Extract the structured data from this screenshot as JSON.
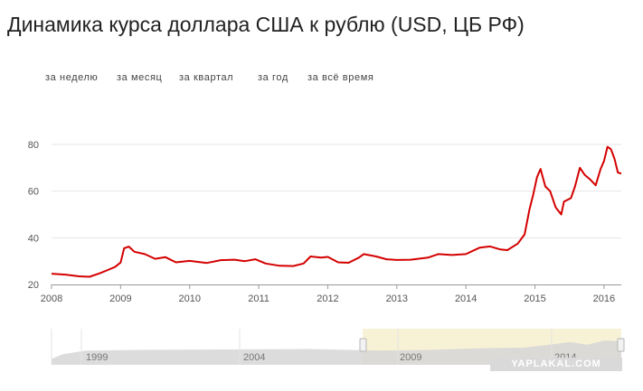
{
  "page": {
    "title": "Динамика курса доллара США к рублю (USD, ЦБ РФ)"
  },
  "range_tabs": [
    {
      "label": "за неделю"
    },
    {
      "label": "за месяц"
    },
    {
      "label": "за квартал"
    },
    {
      "label": "за год"
    },
    {
      "label": "за всё время"
    }
  ],
  "watermark": "YAPLAKAL.COM",
  "colors": {
    "series_line": "#d40000",
    "navigator_window": "#f7f2d6",
    "navigator_area": "#d6d6d6",
    "grid": "#e6e6e6"
  },
  "chart_data": {
    "type": "line",
    "title": "",
    "xlabel": "",
    "ylabel": "",
    "grid": true,
    "legend": "none",
    "xlim": [
      2008.0,
      2016.25
    ],
    "ylim": [
      20,
      80
    ],
    "x_ticks": [
      "2008",
      "2009",
      "2010",
      "2011",
      "2012",
      "2013",
      "2014",
      "2015",
      "2016"
    ],
    "y_ticks": [
      "20",
      "40",
      "60",
      "80"
    ],
    "series": [
      {
        "points": [
          [
            2008.0,
            24.6
          ],
          [
            2008.2,
            24.2
          ],
          [
            2008.4,
            23.5
          ],
          [
            2008.55,
            23.3
          ],
          [
            2008.7,
            24.8
          ],
          [
            2008.8,
            26.0
          ],
          [
            2008.92,
            27.5
          ],
          [
            2009.0,
            29.4
          ],
          [
            2009.05,
            35.5
          ],
          [
            2009.12,
            36.2
          ],
          [
            2009.2,
            34.0
          ],
          [
            2009.35,
            33.0
          ],
          [
            2009.5,
            31.0
          ],
          [
            2009.65,
            31.7
          ],
          [
            2009.8,
            29.5
          ],
          [
            2010.0,
            30.1
          ],
          [
            2010.25,
            29.2
          ],
          [
            2010.45,
            30.4
          ],
          [
            2010.65,
            30.6
          ],
          [
            2010.8,
            30.0
          ],
          [
            2010.95,
            30.8
          ],
          [
            2011.1,
            29.0
          ],
          [
            2011.3,
            28.0
          ],
          [
            2011.5,
            27.9
          ],
          [
            2011.65,
            29.0
          ],
          [
            2011.75,
            32.0
          ],
          [
            2011.9,
            31.5
          ],
          [
            2012.0,
            31.8
          ],
          [
            2012.15,
            29.5
          ],
          [
            2012.3,
            29.3
          ],
          [
            2012.45,
            31.5
          ],
          [
            2012.52,
            33.0
          ],
          [
            2012.7,
            32.0
          ],
          [
            2012.85,
            30.8
          ],
          [
            2013.0,
            30.5
          ],
          [
            2013.2,
            30.6
          ],
          [
            2013.45,
            31.5
          ],
          [
            2013.6,
            33.0
          ],
          [
            2013.8,
            32.6
          ],
          [
            2014.0,
            33.0
          ],
          [
            2014.2,
            35.8
          ],
          [
            2014.35,
            36.3
          ],
          [
            2014.5,
            35.0
          ],
          [
            2014.6,
            34.7
          ],
          [
            2014.75,
            37.5
          ],
          [
            2014.85,
            41.5
          ],
          [
            2014.92,
            52.0
          ],
          [
            2014.97,
            58.0
          ],
          [
            2015.03,
            66.0
          ],
          [
            2015.08,
            69.5
          ],
          [
            2015.15,
            62.0
          ],
          [
            2015.22,
            60.0
          ],
          [
            2015.3,
            53.0
          ],
          [
            2015.38,
            50.0
          ],
          [
            2015.42,
            55.5
          ],
          [
            2015.52,
            57.0
          ],
          [
            2015.58,
            62.0
          ],
          [
            2015.65,
            70.0
          ],
          [
            2015.72,
            67.0
          ],
          [
            2015.8,
            65.0
          ],
          [
            2015.88,
            62.5
          ],
          [
            2015.95,
            69.5
          ],
          [
            2016.0,
            72.9
          ],
          [
            2016.05,
            79.0
          ],
          [
            2016.1,
            78.0
          ],
          [
            2016.15,
            74.0
          ],
          [
            2016.2,
            68.0
          ],
          [
            2016.25,
            67.5
          ]
        ]
      }
    ]
  },
  "navigator": {
    "labels": [
      "1999",
      "2004",
      "2009",
      "2014"
    ]
  }
}
